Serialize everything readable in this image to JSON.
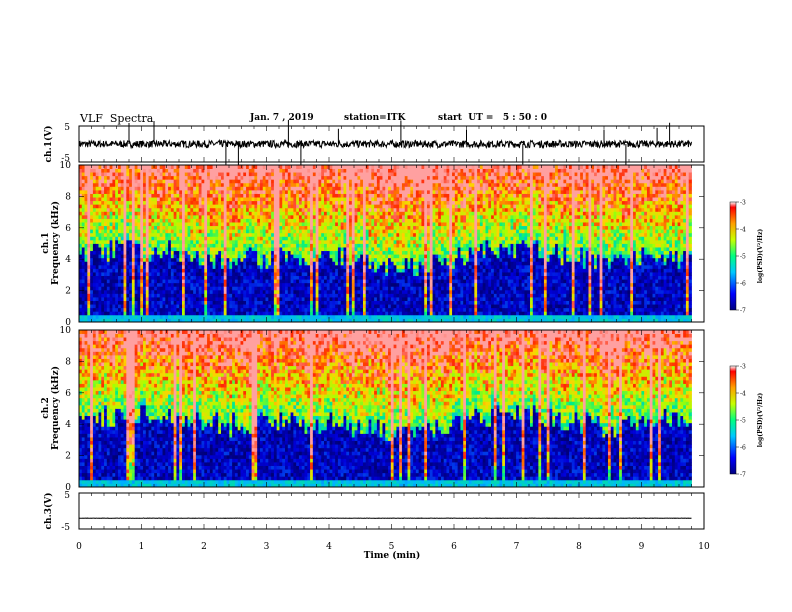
{
  "header": {
    "title": "VLF  Spectra",
    "date": "Jan. 7 , 2019",
    "station": "station=ITK",
    "start": "start  UT =   5 : 50 : 0"
  },
  "chart_data": [
    {
      "type": "line",
      "ylabel": "ch.1(V)",
      "ylim": [
        -5,
        5
      ],
      "y_ticks": [
        "5",
        "-5"
      ],
      "xlim": [
        0,
        10
      ],
      "baseline": 0,
      "noise_amplitude": 1,
      "spikes": [
        0.8,
        1.2,
        2.35,
        2.55,
        3.35,
        3.55,
        4.15,
        5.15,
        6.2,
        7.1,
        8.4,
        8.75,
        9.25,
        9.45
      ]
    },
    {
      "type": "heatmap",
      "ylabel": "ch.1\nFrequency (kHz)",
      "ylabel_lines": [
        "ch.1",
        "Frequency  (kHz)"
      ],
      "xlim": [
        0,
        10
      ],
      "ylim": [
        0,
        10
      ],
      "y_ticks": [
        "0",
        "2",
        "4",
        "6",
        "8",
        "10"
      ],
      "data_xlim": [
        0,
        9.8
      ],
      "colorbar": {
        "label": "log(PSD)(V²/Hz)",
        "range": [
          -7,
          -3
        ],
        "ticks": [
          "-3",
          "-4",
          "-5",
          "-6",
          "-7"
        ]
      }
    },
    {
      "type": "heatmap",
      "ylabel": "ch.2\nFrequency (kHz)",
      "ylabel_lines": [
        "ch.2",
        "Frequency  (kHz)"
      ],
      "xlim": [
        0,
        10
      ],
      "ylim": [
        0,
        10
      ],
      "y_ticks": [
        "0",
        "2",
        "4",
        "6",
        "8",
        "10"
      ],
      "data_xlim": [
        0,
        9.8
      ],
      "colorbar": {
        "label": "log(PSD)(V²/Hz)",
        "range": [
          -7,
          -3
        ],
        "ticks": [
          "-3",
          "-4",
          "-5",
          "-6",
          "-7"
        ]
      }
    },
    {
      "type": "line",
      "ylabel": "ch.3(V)",
      "ylim": [
        -5,
        5
      ],
      "y_ticks": [
        "5",
        "-5"
      ],
      "xlim": [
        0,
        10
      ],
      "baseline": -2,
      "noise_amplitude": 0.05,
      "spikes": []
    }
  ],
  "xaxis": {
    "label": "Time  (min)",
    "ticks": [
      "0",
      "1",
      "2",
      "3",
      "4",
      "5",
      "6",
      "7",
      "8",
      "9",
      "10"
    ]
  }
}
